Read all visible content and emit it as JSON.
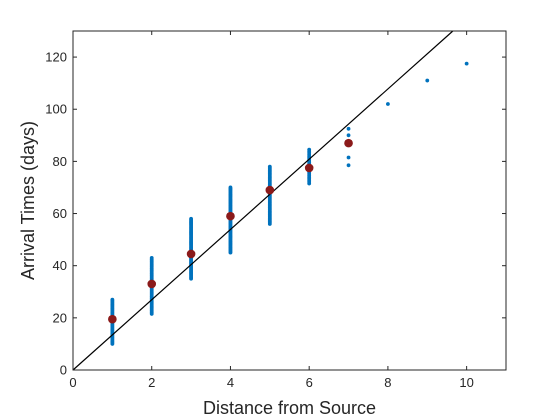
{
  "chart_data": {
    "type": "scatter",
    "title": "",
    "xlabel": "Distance from Source",
    "ylabel": "Arrival Times (days)",
    "xlim": [
      0,
      11
    ],
    "ylim": [
      0,
      130
    ],
    "xticks": [
      0,
      2,
      4,
      6,
      8,
      10
    ],
    "yticks": [
      0,
      20,
      40,
      60,
      80,
      100,
      120
    ],
    "grid": false,
    "legend": "none",
    "colors": {
      "points": "#0072BD",
      "means": "#8B1A1A",
      "line": "#000000",
      "axis": "#262626"
    },
    "point_groups": [
      {
        "x": 1,
        "y_min": 10,
        "y_max": 27,
        "count": 40
      },
      {
        "x": 2,
        "y_min": 21.5,
        "y_max": 43,
        "count": 45
      },
      {
        "x": 3,
        "y_min": 35,
        "y_max": 58,
        "count": 55
      },
      {
        "x": 4,
        "y_min": 45,
        "y_max": 70,
        "count": 60
      },
      {
        "x": 5,
        "y_min": 56,
        "y_max": 78,
        "count": 50
      },
      {
        "x": 6,
        "y_min": 71.5,
        "y_max": 84.5,
        "count": 22
      }
    ],
    "single_points": [
      {
        "x": 7,
        "y": 78.5
      },
      {
        "x": 7,
        "y": 81.5
      },
      {
        "x": 7,
        "y": 90
      },
      {
        "x": 7,
        "y": 92.5
      },
      {
        "x": 8,
        "y": 102
      },
      {
        "x": 9,
        "y": 111
      },
      {
        "x": 10,
        "y": 117.5
      }
    ],
    "means": [
      {
        "x": 1,
        "y": 19.5
      },
      {
        "x": 2,
        "y": 33
      },
      {
        "x": 3,
        "y": 44.5
      },
      {
        "x": 4,
        "y": 59
      },
      {
        "x": 5,
        "y": 69
      },
      {
        "x": 6,
        "y": 77.5
      },
      {
        "x": 7,
        "y": 87
      }
    ],
    "fit_line": {
      "x": [
        0,
        9.65
      ],
      "y": [
        0,
        130
      ]
    }
  }
}
